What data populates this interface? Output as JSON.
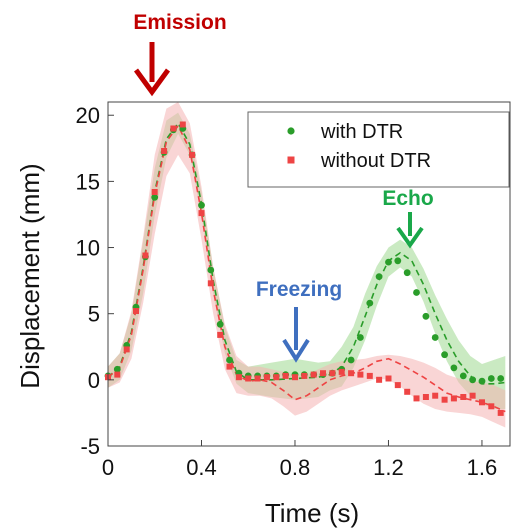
{
  "chart_data": {
    "type": "line",
    "xlabel": "Time (s)",
    "ylabel": "Displacement (mm)",
    "xlim": [
      0,
      1.72
    ],
    "ylim": [
      -5,
      21
    ],
    "xticks": [
      0,
      0.4,
      0.8,
      1.2,
      1.6
    ],
    "xtick_labels": [
      "0",
      "0.4",
      "0.8",
      "1.2",
      "1.6"
    ],
    "yticks": [
      -5,
      0,
      5,
      10,
      15,
      20
    ],
    "ytick_labels": [
      "-5",
      "0",
      "5",
      "10",
      "15",
      "20"
    ],
    "grid": false,
    "legend_position": "top-right",
    "series": [
      {
        "name": "with DTR",
        "color": "#2a9d2a",
        "band_color": "#9fd88f",
        "markers": {
          "x": [
            0,
            0.04,
            0.08,
            0.12,
            0.16,
            0.2,
            0.24,
            0.28,
            0.32,
            0.36,
            0.4,
            0.44,
            0.48,
            0.52,
            0.56,
            0.6,
            0.64,
            0.68,
            0.72,
            0.76,
            0.8,
            0.84,
            0.88,
            0.92,
            0.96,
            1.0,
            1.04,
            1.08,
            1.12,
            1.16,
            1.2,
            1.24,
            1.28,
            1.32,
            1.36,
            1.4,
            1.44,
            1.48,
            1.52,
            1.56,
            1.6,
            1.64,
            1.68
          ],
          "y": [
            0.3,
            0.8,
            2.6,
            5.5,
            9.3,
            13.8,
            17.2,
            18.9,
            19.0,
            17.0,
            13.2,
            8.3,
            4.2,
            1.5,
            0.5,
            0.3,
            0.3,
            0.3,
            0.3,
            0.4,
            0.4,
            0.4,
            0.4,
            0.4,
            0.5,
            0.8,
            1.5,
            3.2,
            5.8,
            7.8,
            8.9,
            9.0,
            8.1,
            6.6,
            4.8,
            3.2,
            1.9,
            0.9,
            0.3,
            0.0,
            -0.1,
            0.1,
            0.1
          ]
        },
        "dashed": {
          "x": [
            0,
            0.05,
            0.1,
            0.15,
            0.2,
            0.25,
            0.3,
            0.35,
            0.4,
            0.45,
            0.5,
            0.55,
            0.6,
            0.7,
            0.8,
            0.9,
            0.95,
            1.0,
            1.05,
            1.1,
            1.15,
            1.2,
            1.25,
            1.3,
            1.35,
            1.4,
            1.45,
            1.5,
            1.55,
            1.6,
            1.65,
            1.7
          ],
          "y": [
            0.2,
            1.0,
            3.6,
            8.5,
            14.2,
            18.2,
            19.4,
            17.8,
            13.3,
            7.5,
            3.0,
            0.6,
            0.0,
            0.0,
            0.1,
            0.2,
            0.4,
            1.0,
            2.5,
            4.8,
            7.2,
            9.0,
            9.6,
            9.0,
            7.2,
            5.0,
            3.0,
            1.4,
            0.3,
            -0.3,
            -0.3,
            -0.2
          ]
        },
        "band_upper": [
          1.0,
          2.0,
          5.0,
          10.5,
          16.0,
          19.6,
          20.2,
          18.6,
          14.2,
          8.5,
          4.0,
          1.5,
          1.0,
          1.3,
          1.6,
          1.3,
          1.4,
          2.5,
          4.0,
          6.5,
          8.6,
          10.0,
          10.6,
          10.0,
          8.4,
          6.4,
          4.6,
          3.0,
          1.8,
          1.2,
          1.5,
          1.8
        ],
        "band_lower": [
          -0.6,
          0.0,
          2.2,
          6.5,
          12.4,
          16.8,
          18.6,
          17.0,
          12.4,
          6.5,
          2.0,
          -0.3,
          -1.0,
          -1.3,
          -1.5,
          -1.3,
          -0.8,
          -0.5,
          0.9,
          3.0,
          5.6,
          7.8,
          8.5,
          7.8,
          5.9,
          3.5,
          1.4,
          -0.2,
          -1.2,
          -1.8,
          -2.2,
          -2.2
        ]
      },
      {
        "name": "without DTR",
        "color": "#ee4444",
        "band_color": "#f4b3b3",
        "markers": {
          "x": [
            0,
            0.04,
            0.08,
            0.12,
            0.16,
            0.2,
            0.24,
            0.28,
            0.32,
            0.36,
            0.4,
            0.44,
            0.48,
            0.52,
            0.56,
            0.6,
            0.64,
            0.68,
            0.72,
            0.76,
            0.8,
            0.84,
            0.88,
            0.92,
            0.96,
            1.0,
            1.04,
            1.08,
            1.12,
            1.16,
            1.2,
            1.24,
            1.28,
            1.32,
            1.36,
            1.4,
            1.44,
            1.48,
            1.52,
            1.56,
            1.6,
            1.64,
            1.68
          ],
          "y": [
            0.2,
            0.4,
            2.3,
            5.2,
            9.4,
            14.2,
            17.3,
            19.0,
            19.3,
            17.0,
            12.6,
            7.3,
            3.4,
            1.0,
            0.2,
            0.1,
            0.1,
            0.2,
            0.2,
            0.3,
            0.2,
            0.3,
            0.4,
            0.5,
            0.5,
            0.6,
            0.5,
            0.4,
            0.3,
            0.0,
            0.1,
            -0.4,
            -0.9,
            -1.4,
            -1.3,
            -1.2,
            -1.5,
            -1.4,
            -1.3,
            -1.2,
            -1.7,
            -2.0,
            -2.5
          ]
        },
        "dashed": {
          "x": [
            0,
            0.05,
            0.1,
            0.15,
            0.2,
            0.25,
            0.3,
            0.35,
            0.4,
            0.45,
            0.5,
            0.55,
            0.6,
            0.65,
            0.7,
            0.75,
            0.8,
            0.85,
            0.9,
            0.95,
            1.0,
            1.05,
            1.1,
            1.15,
            1.2,
            1.25,
            1.3,
            1.35,
            1.4,
            1.45,
            1.5,
            1.55,
            1.6,
            1.65,
            1.7
          ],
          "y": [
            0.2,
            0.9,
            3.4,
            8.3,
            14.0,
            18.0,
            19.2,
            17.4,
            12.6,
            6.8,
            2.5,
            0.4,
            -0.1,
            0.0,
            -0.2,
            -0.8,
            -1.5,
            -1.2,
            -0.6,
            0.0,
            0.3,
            0.5,
            0.9,
            1.4,
            1.6,
            1.2,
            0.7,
            0.2,
            -0.4,
            -1.0,
            -1.3,
            -1.5,
            -1.7,
            -2.0,
            -2.4
          ]
        },
        "band_upper": [
          1.0,
          2.0,
          5.2,
          10.8,
          17.0,
          20.5,
          21.0,
          19.4,
          14.6,
          8.5,
          4.2,
          1.8,
          1.0,
          1.0,
          0.8,
          0.6,
          0.3,
          0.4,
          0.8,
          1.2,
          1.4,
          1.5,
          1.6,
          1.8,
          1.9,
          1.8,
          1.6,
          1.3,
          0.9,
          0.4,
          0.1,
          -0.1,
          -0.2,
          -0.4,
          -0.8
        ],
        "band_lower": [
          -0.6,
          -0.2,
          1.6,
          5.8,
          11.0,
          15.4,
          17.0,
          15.6,
          10.6,
          5.0,
          0.8,
          -1.0,
          -1.2,
          -1.2,
          -1.4,
          -2.0,
          -2.7,
          -2.4,
          -1.8,
          -1.2,
          -0.8,
          -0.5,
          -0.2,
          0.1,
          0.0,
          -0.5,
          -1.2,
          -1.8,
          -2.2,
          -2.4,
          -2.5,
          -2.6,
          -2.8,
          -3.2,
          -3.6
        ]
      }
    ],
    "annotations": [
      {
        "text": "Emission",
        "x": 0.3,
        "y": 20.3,
        "color": "#c00000"
      },
      {
        "text": "Freezing",
        "x": 0.8,
        "y": 1.2,
        "color": "#3f6fbf"
      },
      {
        "text": "Echo",
        "x": 1.3,
        "y": 9.8,
        "color": "#1aa84a"
      }
    ]
  }
}
